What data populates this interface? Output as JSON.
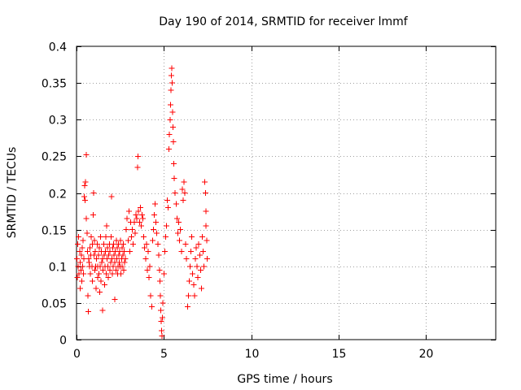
{
  "chart_data": {
    "type": "scatter",
    "title": "Day 190 of 2014, SRMTID for receiver lmmf",
    "xlabel": "GPS time / hours",
    "ylabel": "SRMTID / TECUs",
    "xlim": [
      0,
      24
    ],
    "ylim": [
      0,
      0.4
    ],
    "grid": true,
    "marker": "+",
    "series_color": "#ff0000",
    "xticks": [
      0,
      5,
      10,
      15,
      20
    ],
    "xtick_labels": [
      "0",
      "5",
      "10",
      "15",
      "20"
    ],
    "yticks": [
      0,
      0.05,
      0.1,
      0.15,
      0.2,
      0.25,
      0.3,
      0.35,
      0.4
    ],
    "ytick_labels": [
      "0",
      "0.05",
      "0.1",
      "0.15",
      "0.2",
      "0.25",
      "0.3",
      "0.35",
      "0.4"
    ],
    "points": [
      [
        0.02,
        0.11
      ],
      [
        0.05,
        0.085
      ],
      [
        0.08,
        0.13
      ],
      [
        0.1,
        0.1
      ],
      [
        0.12,
        0.14
      ],
      [
        0.15,
        0.09
      ],
      [
        0.18,
        0.12
      ],
      [
        0.2,
        0.105
      ],
      [
        0.22,
        0.07
      ],
      [
        0.25,
        0.095
      ],
      [
        0.28,
        0.115
      ],
      [
        0.3,
        0.08
      ],
      [
        0.32,
        0.125
      ],
      [
        0.35,
        0.1
      ],
      [
        0.38,
        0.135
      ],
      [
        0.4,
        0.09
      ],
      [
        0.42,
        0.11
      ],
      [
        0.45,
        0.195
      ],
      [
        0.47,
        0.21
      ],
      [
        0.5,
        0.19
      ],
      [
        0.52,
        0.215
      ],
      [
        0.55,
        0.252
      ],
      [
        0.57,
        0.165
      ],
      [
        0.6,
        0.145
      ],
      [
        0.62,
        0.12
      ],
      [
        0.65,
        0.06
      ],
      [
        0.68,
        0.038
      ],
      [
        0.7,
        0.11
      ],
      [
        0.72,
        0.105
      ],
      [
        0.75,
        0.1
      ],
      [
        0.78,
        0.125
      ],
      [
        0.8,
        0.09
      ],
      [
        0.82,
        0.115
      ],
      [
        0.85,
        0.14
      ],
      [
        0.88,
        0.1
      ],
      [
        0.9,
        0.13
      ],
      [
        0.92,
        0.08
      ],
      [
        0.95,
        0.17
      ],
      [
        0.98,
        0.2
      ],
      [
        1.0,
        0.115
      ],
      [
        1.02,
        0.135
      ],
      [
        1.05,
        0.095
      ],
      [
        1.08,
        0.12
      ],
      [
        1.1,
        0.1
      ],
      [
        1.12,
        0.07
      ],
      [
        1.15,
        0.11
      ],
      [
        1.18,
        0.13
      ],
      [
        1.2,
        0.085
      ],
      [
        1.22,
        0.1
      ],
      [
        1.25,
        0.115
      ],
      [
        1.28,
        0.09
      ],
      [
        1.3,
        0.125
      ],
      [
        1.32,
        0.065
      ],
      [
        1.35,
        0.1
      ],
      [
        1.38,
        0.14
      ],
      [
        1.4,
        0.08
      ],
      [
        1.42,
        0.12
      ],
      [
        1.45,
        0.105
      ],
      [
        1.48,
        0.04
      ],
      [
        1.5,
        0.11
      ],
      [
        1.52,
        0.095
      ],
      [
        1.55,
        0.13
      ],
      [
        1.58,
        0.115
      ],
      [
        1.6,
        0.075
      ],
      [
        1.62,
        0.1
      ],
      [
        1.65,
        0.12
      ],
      [
        1.68,
        0.14
      ],
      [
        1.7,
        0.09
      ],
      [
        1.72,
        0.155
      ],
      [
        1.75,
        0.11
      ],
      [
        1.78,
        0.125
      ],
      [
        1.8,
        0.1
      ],
      [
        1.82,
        0.085
      ],
      [
        1.85,
        0.115
      ],
      [
        1.88,
        0.13
      ],
      [
        1.9,
        0.095
      ],
      [
        1.92,
        0.12
      ],
      [
        1.95,
        0.105
      ],
      [
        1.98,
        0.14
      ],
      [
        2.0,
        0.195
      ],
      [
        2.02,
        0.11
      ],
      [
        2.05,
        0.09
      ],
      [
        2.08,
        0.125
      ],
      [
        2.1,
        0.1
      ],
      [
        2.12,
        0.13
      ],
      [
        2.15,
        0.115
      ],
      [
        2.18,
        0.055
      ],
      [
        2.2,
        0.105
      ],
      [
        2.22,
        0.12
      ],
      [
        2.25,
        0.095
      ],
      [
        2.28,
        0.135
      ],
      [
        2.3,
        0.11
      ],
      [
        2.32,
        0.125
      ],
      [
        2.35,
        0.09
      ],
      [
        2.38,
        0.1
      ],
      [
        2.4,
        0.13
      ],
      [
        2.42,
        0.115
      ],
      [
        2.45,
        0.105
      ],
      [
        2.48,
        0.12
      ],
      [
        2.5,
        0.1
      ],
      [
        2.52,
        0.135
      ],
      [
        2.55,
        0.09
      ],
      [
        2.58,
        0.11
      ],
      [
        2.6,
        0.125
      ],
      [
        2.62,
        0.1
      ],
      [
        2.65,
        0.115
      ],
      [
        2.68,
        0.13
      ],
      [
        2.7,
        0.095
      ],
      [
        2.72,
        0.12
      ],
      [
        2.75,
        0.105
      ],
      [
        2.8,
        0.11
      ],
      [
        2.85,
        0.15
      ],
      [
        2.9,
        0.165
      ],
      [
        2.95,
        0.135
      ],
      [
        3.0,
        0.175
      ],
      [
        3.05,
        0.12
      ],
      [
        3.1,
        0.16
      ],
      [
        3.15,
        0.14
      ],
      [
        3.2,
        0.15
      ],
      [
        3.25,
        0.13
      ],
      [
        3.3,
        0.16
      ],
      [
        3.35,
        0.145
      ],
      [
        3.4,
        0.17
      ],
      [
        3.45,
        0.165
      ],
      [
        3.5,
        0.235
      ],
      [
        3.52,
        0.25
      ],
      [
        3.55,
        0.175
      ],
      [
        3.6,
        0.16
      ],
      [
        3.65,
        0.18
      ],
      [
        3.7,
        0.155
      ],
      [
        3.75,
        0.17
      ],
      [
        3.8,
        0.165
      ],
      [
        3.85,
        0.14
      ],
      [
        3.9,
        0.125
      ],
      [
        3.95,
        0.11
      ],
      [
        4.0,
        0.13
      ],
      [
        4.05,
        0.095
      ],
      [
        4.1,
        0.12
      ],
      [
        4.15,
        0.085
      ],
      [
        4.2,
        0.1
      ],
      [
        4.25,
        0.06
      ],
      [
        4.3,
        0.045
      ],
      [
        4.35,
        0.135
      ],
      [
        4.4,
        0.15
      ],
      [
        4.45,
        0.17
      ],
      [
        4.5,
        0.185
      ],
      [
        4.55,
        0.16
      ],
      [
        4.6,
        0.145
      ],
      [
        4.65,
        0.13
      ],
      [
        4.7,
        0.115
      ],
      [
        4.75,
        0.095
      ],
      [
        4.78,
        0.08
      ],
      [
        4.8,
        0.06
      ],
      [
        4.82,
        0.04
      ],
      [
        4.85,
        0.025
      ],
      [
        4.88,
        0.012
      ],
      [
        4.9,
        0.005
      ],
      [
        4.92,
        0.03
      ],
      [
        4.95,
        0.05
      ],
      [
        5.0,
        0.09
      ],
      [
        5.05,
        0.12
      ],
      [
        5.1,
        0.14
      ],
      [
        5.15,
        0.155
      ],
      [
        5.2,
        0.19
      ],
      [
        5.25,
        0.18
      ],
      [
        5.3,
        0.26
      ],
      [
        5.32,
        0.28
      ],
      [
        5.35,
        0.3
      ],
      [
        5.38,
        0.32
      ],
      [
        5.4,
        0.34
      ],
      [
        5.42,
        0.36
      ],
      [
        5.45,
        0.37
      ],
      [
        5.48,
        0.35
      ],
      [
        5.5,
        0.31
      ],
      [
        5.52,
        0.29
      ],
      [
        5.55,
        0.27
      ],
      [
        5.58,
        0.24
      ],
      [
        5.6,
        0.22
      ],
      [
        5.65,
        0.2
      ],
      [
        5.7,
        0.185
      ],
      [
        5.75,
        0.165
      ],
      [
        5.8,
        0.145
      ],
      [
        5.85,
        0.16
      ],
      [
        5.9,
        0.135
      ],
      [
        5.95,
        0.15
      ],
      [
        6.0,
        0.12
      ],
      [
        6.05,
        0.205
      ],
      [
        6.1,
        0.19
      ],
      [
        6.15,
        0.215
      ],
      [
        6.2,
        0.2
      ],
      [
        6.25,
        0.13
      ],
      [
        6.3,
        0.11
      ],
      [
        6.35,
        0.045
      ],
      [
        6.4,
        0.06
      ],
      [
        6.45,
        0.08
      ],
      [
        6.5,
        0.1
      ],
      [
        6.55,
        0.12
      ],
      [
        6.6,
        0.14
      ],
      [
        6.65,
        0.09
      ],
      [
        6.7,
        0.075
      ],
      [
        6.75,
        0.06
      ],
      [
        6.8,
        0.11
      ],
      [
        6.85,
        0.125
      ],
      [
        6.9,
        0.1
      ],
      [
        6.95,
        0.085
      ],
      [
        7.0,
        0.13
      ],
      [
        7.05,
        0.115
      ],
      [
        7.1,
        0.095
      ],
      [
        7.15,
        0.07
      ],
      [
        7.2,
        0.14
      ],
      [
        7.25,
        0.12
      ],
      [
        7.3,
        0.1
      ],
      [
        7.35,
        0.215
      ],
      [
        7.38,
        0.2
      ],
      [
        7.4,
        0.175
      ],
      [
        7.42,
        0.155
      ],
      [
        7.45,
        0.135
      ],
      [
        7.48,
        0.11
      ]
    ]
  }
}
